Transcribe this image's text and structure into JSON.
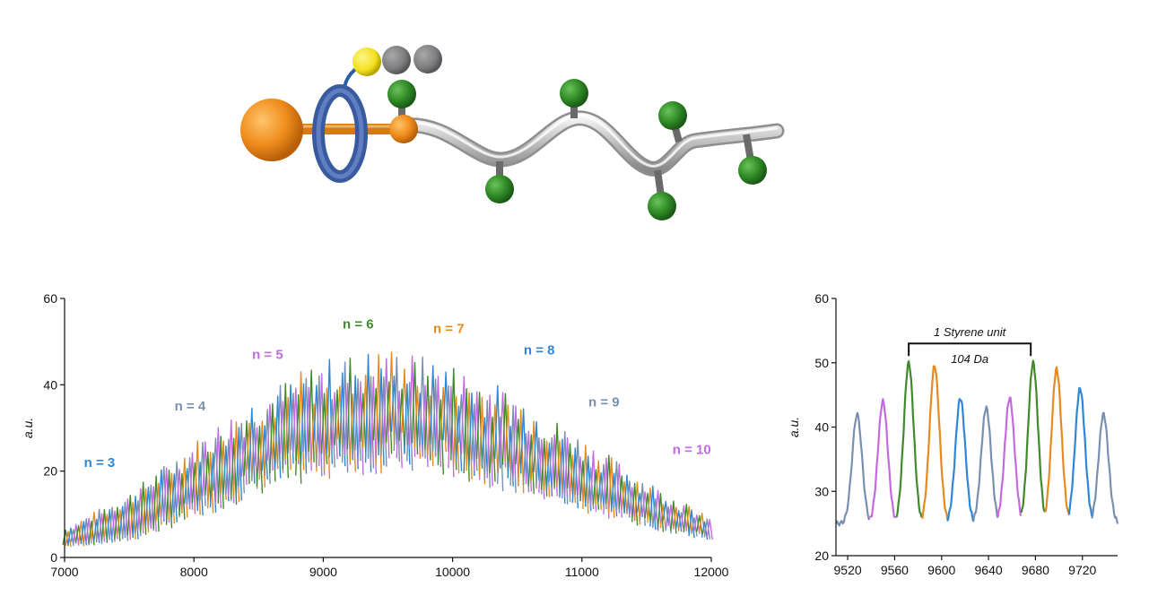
{
  "illustration": {
    "description_icons": [
      "stopper-sphere-icon",
      "macrocycle-ring-icon",
      "linker-icon",
      "polymer-chain-icon"
    ]
  },
  "chart_data": [
    {
      "type": "line",
      "title": "",
      "xlabel": "",
      "ylabel": "a.u.",
      "xlim": [
        7000,
        12000
      ],
      "ylim": [
        0,
        60
      ],
      "x_ticks": [
        "7000",
        "8000",
        "9000",
        "10000",
        "11000",
        "12000"
      ],
      "y_ticks": [
        "0",
        "20",
        "40",
        "60"
      ],
      "grid": false,
      "envelope": {
        "x": [
          7000,
          7500,
          8000,
          8500,
          9000,
          9500,
          10000,
          10500,
          11000,
          11500,
          12000
        ],
        "peak_top": [
          7,
          15,
          27,
          38,
          46,
          49,
          45,
          38,
          28,
          18,
          9
        ],
        "baseline": [
          3,
          5,
          12,
          20,
          25,
          27,
          25,
          20,
          14,
          9,
          5
        ]
      },
      "series": [
        {
          "label": "n = 3",
          "color": "#2e86d6",
          "label_x": 7150,
          "label_y": 21
        },
        {
          "label": "n = 4",
          "color": "#7a8fb0",
          "label_x": 7850,
          "label_y": 34
        },
        {
          "label": "n = 5",
          "color": "#c46ae0",
          "label_x": 8450,
          "label_y": 46
        },
        {
          "label": "n = 6",
          "color": "#3f8a2a",
          "label_x": 9150,
          "label_y": 53
        },
        {
          "label": "n = 7",
          "color": "#e58a1f",
          "label_x": 9850,
          "label_y": 52
        },
        {
          "label": "n = 8",
          "color": "#2e86d6",
          "label_x": 10550,
          "label_y": 47
        },
        {
          "label": "n = 9",
          "color": "#7a8fb0",
          "label_x": 11050,
          "label_y": 35
        },
        {
          "label": "n = 10",
          "color": "#c46ae0",
          "label_x": 11700,
          "label_y": 24
        }
      ]
    },
    {
      "type": "line",
      "title": "",
      "xlabel": "",
      "ylabel": "a.u.",
      "xlim": [
        9510,
        9750
      ],
      "ylim": [
        20,
        60
      ],
      "x_ticks": [
        "9520",
        "9560",
        "9600",
        "9640",
        "9680",
        "9720"
      ],
      "y_ticks": [
        "20",
        "30",
        "40",
        "50",
        "60"
      ],
      "grid": false,
      "annotation": {
        "text_top": "1 Styrene unit",
        "text_bottom": "104 Da",
        "x_start": 9572,
        "x_end": 9676,
        "y": 53
      },
      "peaks": [
        {
          "x": 9528,
          "height": 42,
          "color": "#7a8fb0"
        },
        {
          "x": 9550,
          "height": 44,
          "color": "#c46ae0"
        },
        {
          "x": 9572,
          "height": 50,
          "color": "#3f8a2a"
        },
        {
          "x": 9594,
          "height": 49.5,
          "color": "#e58a1f"
        },
        {
          "x": 9616,
          "height": 44.5,
          "color": "#2e86d6"
        },
        {
          "x": 9638,
          "height": 43,
          "color": "#7a8fb0"
        },
        {
          "x": 9658,
          "height": 44.5,
          "color": "#c46ae0"
        },
        {
          "x": 9678,
          "height": 50,
          "color": "#3f8a2a"
        },
        {
          "x": 9698,
          "height": 49,
          "color": "#e58a1f"
        },
        {
          "x": 9718,
          "height": 46,
          "color": "#2e86d6"
        },
        {
          "x": 9738,
          "height": 42,
          "color": "#7a8fb0"
        }
      ],
      "baseline": 25
    }
  ]
}
